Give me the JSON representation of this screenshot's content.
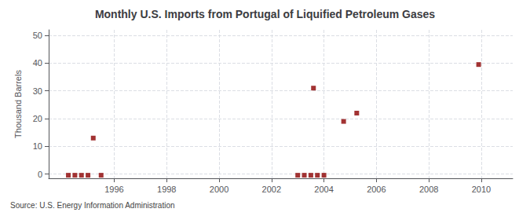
{
  "chart_data": {
    "type": "scatter",
    "title": "Monthly U.S. Imports from Portugal of Liquified Petroleum Gases",
    "ylabel": "Thousand Barrels",
    "source": "Source: U.S. Energy Information Administration",
    "x": [
      1994.25,
      1994.5,
      1994.75,
      1995.0,
      1995.2,
      1995.5,
      2003.0,
      2003.25,
      2003.5,
      2003.6,
      2003.75,
      2004.0,
      2004.75,
      2005.25,
      2009.9
    ],
    "values": [
      -0.4,
      -0.4,
      -0.4,
      -0.4,
      13.0,
      -0.4,
      -0.4,
      -0.4,
      -0.4,
      31.0,
      -0.4,
      -0.4,
      19.0,
      22.0,
      39.5
    ],
    "color": "#8b0000",
    "marker": "square",
    "xlim": [
      1993.5,
      2011.2
    ],
    "ylim": [
      -1.5,
      52
    ],
    "xticks": [
      1996,
      1998,
      2000,
      2002,
      2004,
      2006,
      2008,
      2010
    ],
    "yticks": [
      0,
      10,
      20,
      30,
      40,
      50
    ],
    "grid": true
  }
}
